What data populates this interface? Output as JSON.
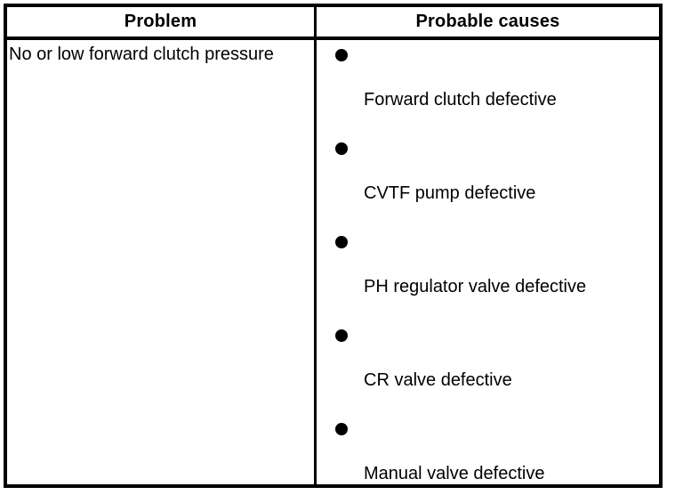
{
  "table": {
    "columns": [
      {
        "header": "Problem"
      },
      {
        "header": "Probable causes"
      }
    ],
    "rows": [
      {
        "problem": "No or low forward clutch pressure",
        "causes": [
          "Forward clutch defective",
          "CVTF pump defective",
          "PH regulator valve defective",
          "CR valve defective",
          "Manual valve defective"
        ]
      }
    ]
  },
  "icons": {
    "bullet": "filled-circle"
  },
  "colors": {
    "background": "#ffffff",
    "border": "#000000",
    "text": "#000000",
    "bullet": "#000000"
  }
}
